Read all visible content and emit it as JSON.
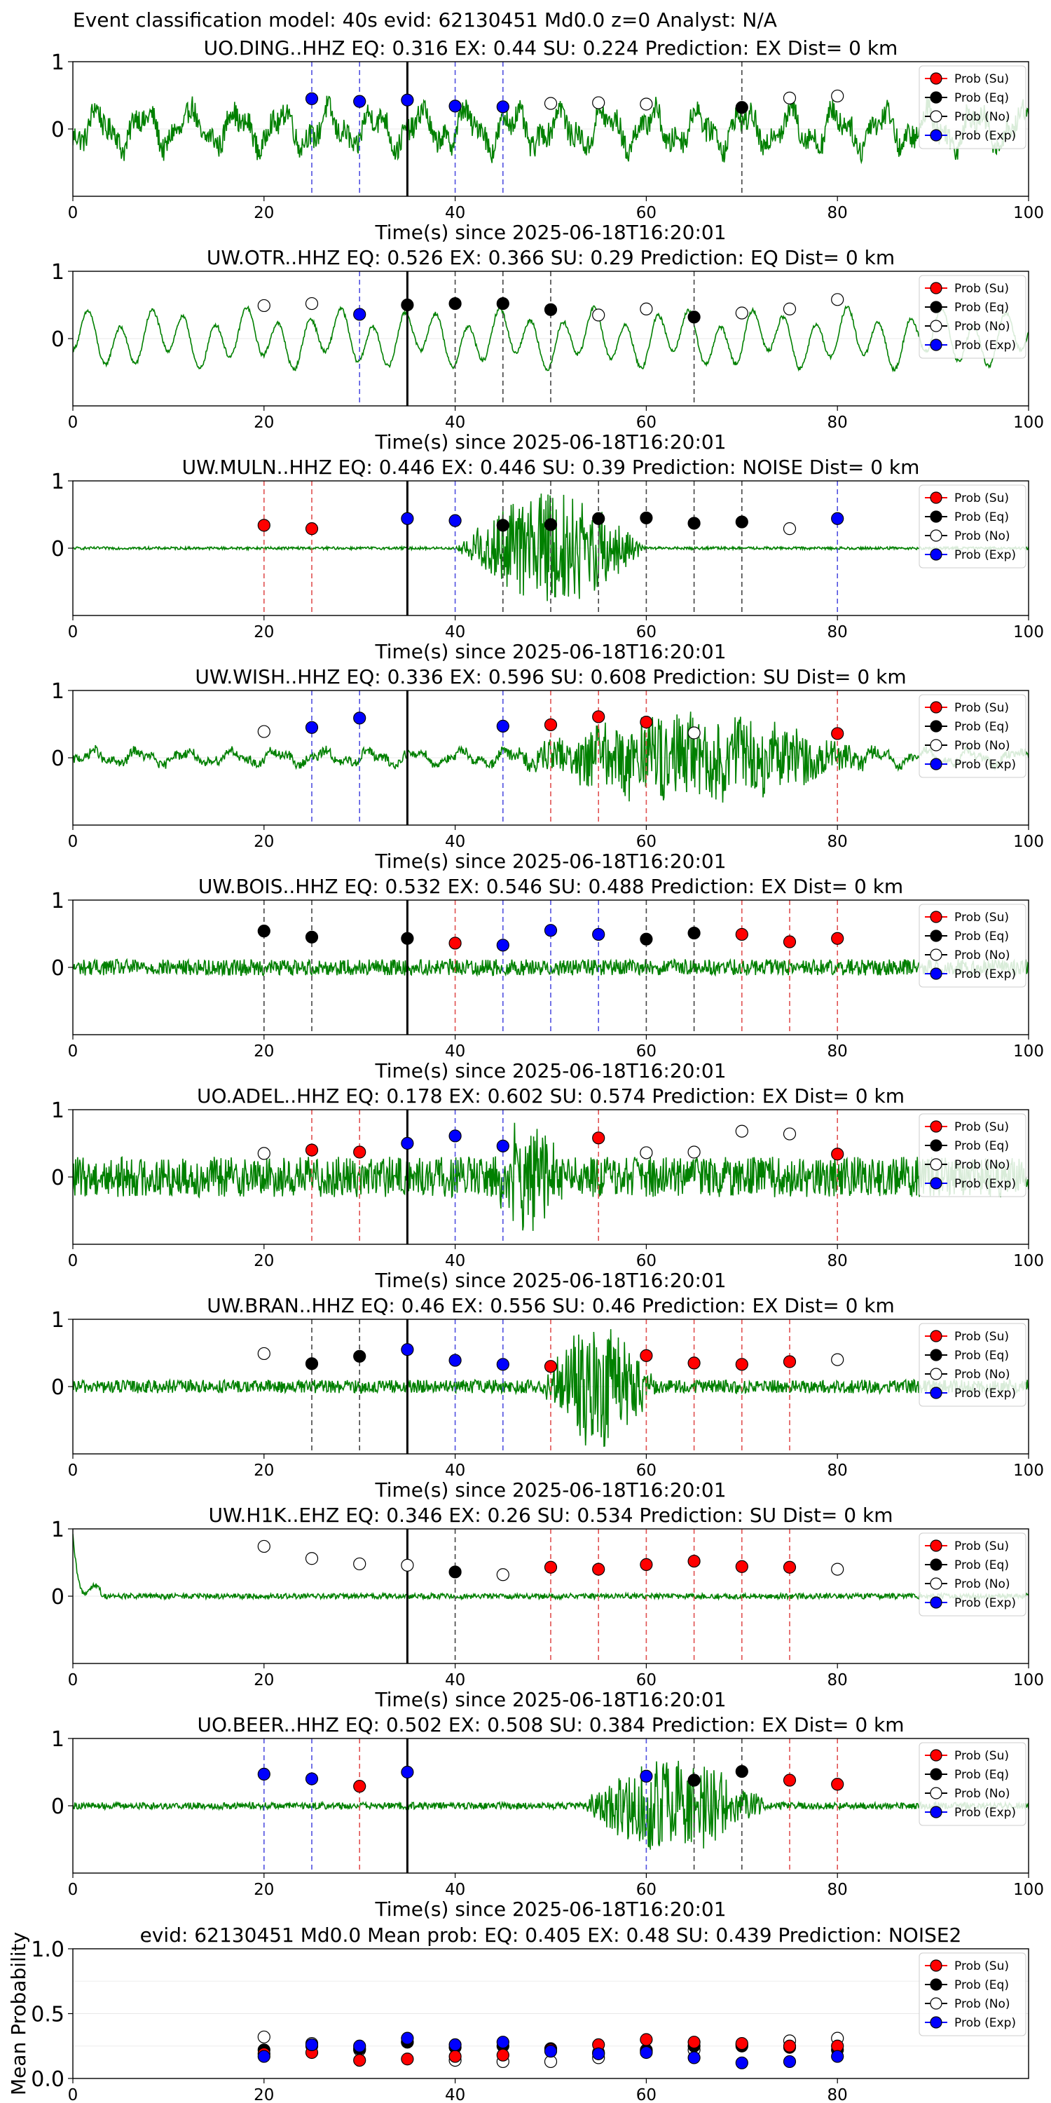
{
  "suptitle": "Event classification model: 40s evid: 62130451 Md0.0 z=0 Analyst: N/A",
  "legend_labels": [
    "Prob (Su)",
    "Prob (Eq)",
    "Prob (No)",
    "Prob (Exp)"
  ],
  "colors": {
    "su": "#ff0000",
    "eq": "#000000",
    "no": "#ffffff",
    "exp": "#0000ff",
    "trace": "#008000",
    "su_line": "#e05050",
    "eq_line": "#444444",
    "exp_line": "#5050e0"
  },
  "chart_data": [
    {
      "type": "scatter",
      "station": "UO.DING..HHZ",
      "title": "UO.DING..HHZ   EQ: 0.316  EX: 0.44  SU: 0.224   Prediction: EX    Dist= 0 km",
      "xlabel": "Time(s) since 2025-06-18T16:20:01",
      "ylabel": "",
      "xlim": [
        0,
        100
      ],
      "ylim": [
        -1,
        1
      ],
      "xticks": [
        0,
        20,
        40,
        60,
        80,
        100
      ],
      "yticks": [
        0,
        1
      ],
      "trace": {
        "style": "mixed",
        "amp": 0.4,
        "burst": null
      },
      "picks": [
        35
      ],
      "windows": [
        [
          25,
          "exp"
        ],
        [
          30,
          "exp"
        ],
        [
          40,
          "exp"
        ],
        [
          45,
          "exp"
        ],
        [
          70,
          "eq"
        ]
      ],
      "points": [
        [
          25,
          0.45,
          "exp"
        ],
        [
          30,
          0.41,
          "exp"
        ],
        [
          35,
          0.43,
          "exp"
        ],
        [
          40,
          0.34,
          "exp"
        ],
        [
          45,
          0.33,
          "exp"
        ],
        [
          50,
          0.38,
          "no"
        ],
        [
          55,
          0.39,
          "no"
        ],
        [
          60,
          0.37,
          "no"
        ],
        [
          70,
          0.32,
          "eq"
        ],
        [
          75,
          0.46,
          "no"
        ],
        [
          80,
          0.49,
          "no"
        ]
      ]
    },
    {
      "type": "scatter",
      "station": "UW.OTR..HHZ",
      "title": "UW.OTR..HHZ   EQ: 0.526  EX: 0.366  SU: 0.29   Prediction: EQ    Dist= 0 km",
      "xlabel": "Time(s) since 2025-06-18T16:20:01",
      "ylabel": "",
      "xlim": [
        0,
        100
      ],
      "ylim": [
        -1,
        1
      ],
      "xticks": [
        0,
        20,
        40,
        60,
        80,
        100
      ],
      "yticks": [
        0,
        1
      ],
      "trace": {
        "style": "sine",
        "amp": 0.42,
        "burst": null
      },
      "picks": [
        35
      ],
      "windows": [
        [
          30,
          "exp"
        ],
        [
          40,
          "eq"
        ],
        [
          45,
          "eq"
        ],
        [
          50,
          "eq"
        ],
        [
          65,
          "eq"
        ]
      ],
      "points": [
        [
          20,
          0.49,
          "no"
        ],
        [
          25,
          0.52,
          "no"
        ],
        [
          30,
          0.36,
          "exp"
        ],
        [
          35,
          0.5,
          "eq"
        ],
        [
          40,
          0.52,
          "eq"
        ],
        [
          45,
          0.52,
          "eq"
        ],
        [
          50,
          0.43,
          "eq"
        ],
        [
          55,
          0.35,
          "no"
        ],
        [
          60,
          0.44,
          "no"
        ],
        [
          65,
          0.32,
          "eq"
        ],
        [
          70,
          0.38,
          "no"
        ],
        [
          75,
          0.44,
          "no"
        ],
        [
          80,
          0.58,
          "no"
        ]
      ]
    },
    {
      "type": "scatter",
      "station": "UW.MULN..HHZ",
      "title": "UW.MULN..HHZ   EQ: 0.446  EX: 0.446  SU: 0.39   Prediction: NOISE    Dist= 0 km",
      "xlabel": "Time(s) since 2025-06-18T16:20:01",
      "ylabel": "",
      "xlim": [
        0,
        100
      ],
      "ylim": [
        -1,
        1
      ],
      "xticks": [
        0,
        20,
        40,
        60,
        80,
        100
      ],
      "yticks": [
        0,
        1
      ],
      "trace": {
        "style": "noise",
        "amp": 0.02,
        "burst": [
          40,
          60,
          0.85
        ]
      },
      "picks": [
        35
      ],
      "windows": [
        [
          20,
          "su"
        ],
        [
          25,
          "su"
        ],
        [
          40,
          "exp"
        ],
        [
          45,
          "eq"
        ],
        [
          50,
          "eq"
        ],
        [
          55,
          "eq"
        ],
        [
          60,
          "eq"
        ],
        [
          65,
          "eq"
        ],
        [
          70,
          "eq"
        ],
        [
          80,
          "exp"
        ]
      ],
      "points": [
        [
          20,
          0.34,
          "su"
        ],
        [
          25,
          0.29,
          "su"
        ],
        [
          35,
          0.44,
          "exp"
        ],
        [
          40,
          0.41,
          "exp"
        ],
        [
          45,
          0.34,
          "eq"
        ],
        [
          50,
          0.35,
          "eq"
        ],
        [
          55,
          0.44,
          "eq"
        ],
        [
          60,
          0.45,
          "eq"
        ],
        [
          65,
          0.37,
          "eq"
        ],
        [
          70,
          0.39,
          "eq"
        ],
        [
          75,
          0.29,
          "no"
        ],
        [
          80,
          0.44,
          "exp"
        ]
      ]
    },
    {
      "type": "scatter",
      "station": "UW.WISH..HHZ",
      "title": "UW.WISH..HHZ   EQ: 0.336  EX: 0.596  SU: 0.608   Prediction: SU    Dist= 0 km",
      "xlabel": "Time(s) since 2025-06-18T16:20:01",
      "ylabel": "",
      "xlim": [
        0,
        100
      ],
      "ylim": [
        -1,
        1
      ],
      "xticks": [
        0,
        20,
        40,
        60,
        80,
        100
      ],
      "yticks": [
        0,
        1
      ],
      "trace": {
        "style": "mixed",
        "amp": 0.15,
        "burst": [
          45,
          85,
          0.6
        ]
      },
      "picks": [
        35
      ],
      "windows": [
        [
          25,
          "exp"
        ],
        [
          30,
          "exp"
        ],
        [
          45,
          "exp"
        ],
        [
          50,
          "su"
        ],
        [
          55,
          "su"
        ],
        [
          60,
          "su"
        ],
        [
          80,
          "su"
        ]
      ],
      "points": [
        [
          20,
          0.39,
          "no"
        ],
        [
          25,
          0.45,
          "exp"
        ],
        [
          30,
          0.59,
          "exp"
        ],
        [
          45,
          0.47,
          "exp"
        ],
        [
          50,
          0.49,
          "su"
        ],
        [
          55,
          0.61,
          "su"
        ],
        [
          60,
          0.53,
          "su"
        ],
        [
          65,
          0.37,
          "no"
        ],
        [
          80,
          0.36,
          "su"
        ]
      ]
    },
    {
      "type": "scatter",
      "station": "UW.BOIS..HHZ",
      "title": "UW.BOIS..HHZ   EQ: 0.532  EX: 0.546  SU: 0.488   Prediction: EX    Dist= 0 km",
      "xlabel": "Time(s) since 2025-06-18T16:20:01",
      "ylabel": "",
      "xlim": [
        0,
        100
      ],
      "ylim": [
        -1,
        1
      ],
      "xticks": [
        0,
        20,
        40,
        60,
        80,
        100
      ],
      "yticks": [
        0,
        1
      ],
      "trace": {
        "style": "noise",
        "amp": 0.12,
        "burst": null
      },
      "picks": [
        35
      ],
      "windows": [
        [
          20,
          "eq"
        ],
        [
          25,
          "eq"
        ],
        [
          40,
          "su"
        ],
        [
          45,
          "exp"
        ],
        [
          50,
          "exp"
        ],
        [
          55,
          "exp"
        ],
        [
          60,
          "eq"
        ],
        [
          65,
          "eq"
        ],
        [
          70,
          "su"
        ],
        [
          75,
          "su"
        ],
        [
          80,
          "su"
        ]
      ],
      "points": [
        [
          20,
          0.54,
          "eq"
        ],
        [
          25,
          0.45,
          "eq"
        ],
        [
          35,
          0.43,
          "eq"
        ],
        [
          40,
          0.36,
          "su"
        ],
        [
          45,
          0.33,
          "exp"
        ],
        [
          50,
          0.55,
          "exp"
        ],
        [
          55,
          0.49,
          "exp"
        ],
        [
          60,
          0.42,
          "eq"
        ],
        [
          65,
          0.51,
          "eq"
        ],
        [
          70,
          0.49,
          "su"
        ],
        [
          75,
          0.38,
          "su"
        ],
        [
          80,
          0.43,
          "su"
        ]
      ]
    },
    {
      "type": "scatter",
      "station": "UO.ADEL..HHZ",
      "title": "UO.ADEL..HHZ   EQ: 0.178  EX: 0.602  SU: 0.574   Prediction: EX    Dist= 0 km",
      "xlabel": "Time(s) since 2025-06-18T16:20:01",
      "ylabel": "",
      "xlim": [
        0,
        100
      ],
      "ylim": [
        -1,
        1
      ],
      "xticks": [
        0,
        20,
        40,
        60,
        80,
        100
      ],
      "yticks": [
        0,
        1
      ],
      "trace": {
        "style": "noise",
        "amp": 0.3,
        "burst": [
          44,
          52,
          0.8
        ]
      },
      "picks": [
        35
      ],
      "windows": [
        [
          25,
          "su"
        ],
        [
          30,
          "su"
        ],
        [
          40,
          "exp"
        ],
        [
          45,
          "exp"
        ],
        [
          55,
          "su"
        ],
        [
          80,
          "su"
        ]
      ],
      "points": [
        [
          20,
          0.35,
          "no"
        ],
        [
          25,
          0.4,
          "su"
        ],
        [
          30,
          0.37,
          "su"
        ],
        [
          35,
          0.5,
          "exp"
        ],
        [
          40,
          0.61,
          "exp"
        ],
        [
          45,
          0.46,
          "exp"
        ],
        [
          55,
          0.58,
          "su"
        ],
        [
          60,
          0.36,
          "no"
        ],
        [
          65,
          0.37,
          "no"
        ],
        [
          70,
          0.68,
          "no"
        ],
        [
          75,
          0.64,
          "no"
        ],
        [
          80,
          0.34,
          "su"
        ]
      ]
    },
    {
      "type": "scatter",
      "station": "UW.BRAN..HHZ",
      "title": "UW.BRAN..HHZ   EQ: 0.46  EX: 0.556  SU: 0.46   Prediction: EX    Dist= 0 km",
      "xlabel": "Time(s) since 2025-06-18T16:20:01",
      "ylabel": "",
      "xlim": [
        0,
        100
      ],
      "ylim": [
        -1,
        1
      ],
      "xticks": [
        0,
        20,
        40,
        60,
        80,
        100
      ],
      "yticks": [
        0,
        1
      ],
      "trace": {
        "style": "noise",
        "amp": 0.1,
        "burst": [
          49,
          61,
          0.85
        ]
      },
      "picks": [
        35
      ],
      "windows": [
        [
          25,
          "eq"
        ],
        [
          30,
          "eq"
        ],
        [
          40,
          "exp"
        ],
        [
          45,
          "exp"
        ],
        [
          50,
          "su"
        ],
        [
          60,
          "su"
        ],
        [
          65,
          "su"
        ],
        [
          70,
          "su"
        ],
        [
          75,
          "su"
        ]
      ],
      "points": [
        [
          20,
          0.49,
          "no"
        ],
        [
          25,
          0.34,
          "eq"
        ],
        [
          30,
          0.45,
          "eq"
        ],
        [
          35,
          0.55,
          "exp"
        ],
        [
          40,
          0.39,
          "exp"
        ],
        [
          45,
          0.33,
          "exp"
        ],
        [
          50,
          0.3,
          "su"
        ],
        [
          60,
          0.46,
          "su"
        ],
        [
          65,
          0.35,
          "su"
        ],
        [
          70,
          0.33,
          "su"
        ],
        [
          75,
          0.37,
          "su"
        ],
        [
          80,
          0.4,
          "no"
        ]
      ]
    },
    {
      "type": "scatter",
      "station": "UW.H1K..EHZ",
      "title": "UW.H1K..EHZ   EQ: 0.346  EX: 0.26  SU: 0.534   Prediction: SU    Dist= 0 km",
      "xlabel": "Time(s) since 2025-06-18T16:20:01",
      "ylabel": "",
      "xlim": [
        0,
        100
      ],
      "ylim": [
        -1,
        1
      ],
      "xticks": [
        0,
        20,
        40,
        60,
        80,
        100
      ],
      "yticks": [
        0,
        1
      ],
      "trace": {
        "style": "decay",
        "amp": 0.04,
        "burst": null
      },
      "picks": [
        35
      ],
      "windows": [
        [
          40,
          "eq"
        ],
        [
          50,
          "su"
        ],
        [
          55,
          "su"
        ],
        [
          60,
          "su"
        ],
        [
          65,
          "su"
        ],
        [
          70,
          "su"
        ],
        [
          75,
          "su"
        ]
      ],
      "points": [
        [
          20,
          0.74,
          "no"
        ],
        [
          25,
          0.56,
          "no"
        ],
        [
          30,
          0.48,
          "no"
        ],
        [
          35,
          0.46,
          "no"
        ],
        [
          40,
          0.36,
          "eq"
        ],
        [
          45,
          0.32,
          "no"
        ],
        [
          50,
          0.43,
          "su"
        ],
        [
          55,
          0.4,
          "su"
        ],
        [
          60,
          0.47,
          "su"
        ],
        [
          65,
          0.52,
          "su"
        ],
        [
          70,
          0.44,
          "su"
        ],
        [
          75,
          0.43,
          "su"
        ],
        [
          80,
          0.4,
          "no"
        ]
      ]
    },
    {
      "type": "scatter",
      "station": "UO.BEER..HHZ",
      "title": "UO.BEER..HHZ   EQ: 0.502  EX: 0.508  SU: 0.384   Prediction: EX    Dist= 0 km",
      "xlabel": "Time(s) since 2025-06-18T16:20:01",
      "ylabel": "",
      "xlim": [
        0,
        100
      ],
      "ylim": [
        -1,
        1
      ],
      "xticks": [
        0,
        20,
        40,
        60,
        80,
        100
      ],
      "yticks": [
        0,
        1
      ],
      "trace": {
        "style": "noise",
        "amp": 0.05,
        "burst": [
          53,
          73,
          0.7
        ]
      },
      "picks": [
        35
      ],
      "windows": [
        [
          20,
          "exp"
        ],
        [
          25,
          "exp"
        ],
        [
          30,
          "su"
        ],
        [
          60,
          "exp"
        ],
        [
          65,
          "eq"
        ],
        [
          70,
          "eq"
        ],
        [
          75,
          "su"
        ],
        [
          80,
          "su"
        ]
      ],
      "points": [
        [
          20,
          0.47,
          "exp"
        ],
        [
          25,
          0.4,
          "exp"
        ],
        [
          30,
          0.29,
          "su"
        ],
        [
          35,
          0.5,
          "exp"
        ],
        [
          60,
          0.44,
          "exp"
        ],
        [
          65,
          0.38,
          "eq"
        ],
        [
          70,
          0.51,
          "eq"
        ],
        [
          75,
          0.38,
          "su"
        ],
        [
          80,
          0.32,
          "su"
        ]
      ]
    },
    {
      "type": "scatter",
      "station": "mean",
      "title": "evid: 62130451  Md0.0   Mean prob:   EQ: 0.405  EX: 0.48  SU: 0.439   Prediction: NOISE2",
      "xlabel": "",
      "ylabel": "Mean Probability",
      "xlim": [
        0,
        100
      ],
      "ylim": [
        0,
        1
      ],
      "xticks": [
        0,
        20,
        40,
        60,
        80
      ],
      "yticks": [
        0.0,
        0.5,
        1.0
      ],
      "ytick_labels": [
        "0.0",
        "0.5",
        "1.0"
      ],
      "trace": null,
      "picks": [],
      "windows": [],
      "series": [
        {
          "key": "no",
          "x": [
            20,
            25,
            30,
            35,
            40,
            45,
            50,
            55,
            60,
            65,
            70,
            75,
            80
          ],
          "y": [
            0.32,
            0.27,
            0.22,
            0.28,
            0.14,
            0.13,
            0.13,
            0.16,
            0.21,
            0.22,
            0.26,
            0.29,
            0.31
          ]
        },
        {
          "key": "eq",
          "x": [
            20,
            25,
            30,
            35,
            40,
            45,
            50,
            55,
            60,
            65,
            70,
            75,
            80
          ],
          "y": [
            0.22,
            0.25,
            0.23,
            0.28,
            0.24,
            0.25,
            0.23,
            0.2,
            0.22,
            0.25,
            0.25,
            0.24,
            0.22
          ]
        },
        {
          "key": "su",
          "x": [
            20,
            25,
            30,
            35,
            40,
            45,
            50,
            55,
            60,
            65,
            70,
            75,
            80
          ],
          "y": [
            0.19,
            0.2,
            0.14,
            0.15,
            0.17,
            0.18,
            0.22,
            0.26,
            0.3,
            0.28,
            0.27,
            0.25,
            0.25
          ]
        },
        {
          "key": "exp",
          "x": [
            20,
            25,
            30,
            35,
            40,
            45,
            50,
            55,
            60,
            65,
            70,
            75,
            80
          ],
          "y": [
            0.17,
            0.26,
            0.25,
            0.31,
            0.26,
            0.28,
            0.21,
            0.19,
            0.2,
            0.16,
            0.12,
            0.13,
            0.17
          ]
        }
      ]
    }
  ]
}
